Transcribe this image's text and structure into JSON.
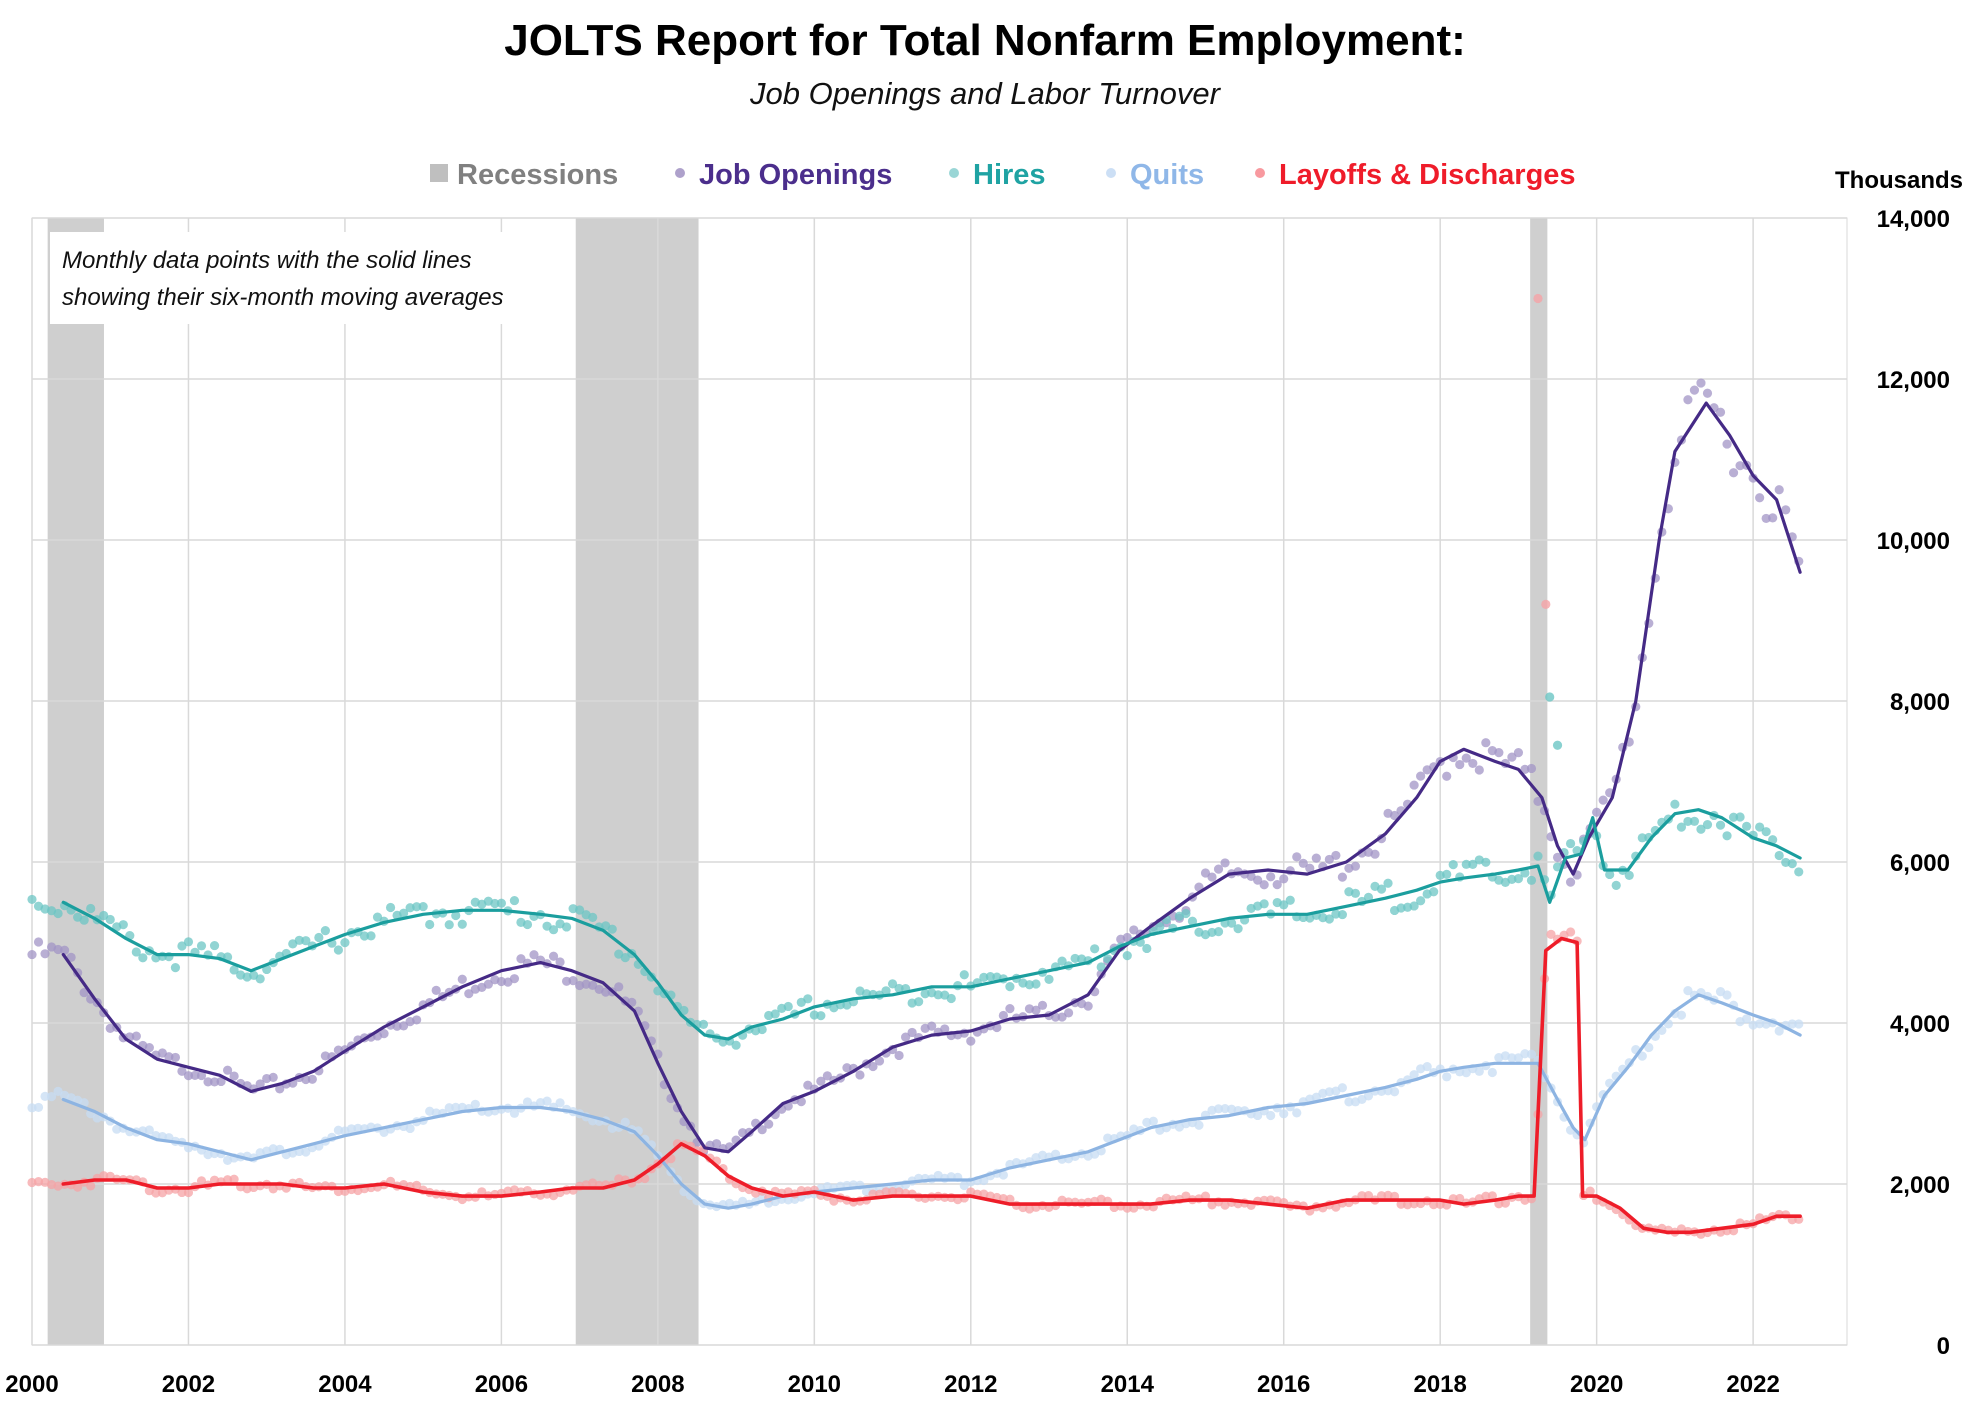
{
  "chart_data": {
    "type": "line",
    "title": "JOLTS Report for Total Nonfarm Employment:",
    "subtitle": "Job Openings and Labor Turnover",
    "units_label": "Thousands",
    "annotation": "Monthly data points with the solid lines showing their six-month moving averages",
    "annotation_lines": [
      "Monthly data points with the solid lines",
      "showing their six-month moving averages"
    ],
    "xlim": [
      2000,
      2023.2
    ],
    "ylim": [
      0,
      14000
    ],
    "x_ticks": [
      "2000",
      "2002",
      "2004",
      "2006",
      "2008",
      "2010",
      "2012",
      "2014",
      "2016",
      "2018",
      "2020",
      "2022"
    ],
    "y_ticks": [
      "0",
      "2,000",
      "4,000",
      "6,000",
      "8,000",
      "10,000",
      "12,000",
      "14,000"
    ],
    "y_tick_values": [
      0,
      2000,
      4000,
      6000,
      8000,
      10000,
      12000,
      14000
    ],
    "recessions": [
      [
        2000.2,
        2000.92
      ],
      [
        2006.95,
        2008.52
      ],
      [
        2019.15,
        2019.37
      ]
    ],
    "legend": [
      {
        "label": "Recessions",
        "color": "#bfbfbf",
        "marker": "square"
      },
      {
        "label": "Job Openings",
        "color": "#4b2e8c",
        "marker": "dot"
      },
      {
        "label": "Hires",
        "color": "#1fa3a3",
        "marker": "dot"
      },
      {
        "label": "Quits",
        "color": "#8fb7e8",
        "marker": "dot"
      },
      {
        "label": "Layoffs & Discharges",
        "color": "#ef1c2a",
        "marker": "dot"
      }
    ],
    "series": [
      {
        "name": "Job Openings",
        "color": "#4b2e8c",
        "line_color": "#452a86",
        "dot_color": "#a294c6",
        "ma_points": [
          [
            2000.4,
            4850
          ],
          [
            2000.8,
            4300
          ],
          [
            2001.2,
            3800
          ],
          [
            2001.6,
            3550
          ],
          [
            2002.0,
            3450
          ],
          [
            2002.4,
            3350
          ],
          [
            2002.8,
            3150
          ],
          [
            2003.2,
            3250
          ],
          [
            2003.6,
            3400
          ],
          [
            2004.0,
            3650
          ],
          [
            2004.5,
            3950
          ],
          [
            2005.0,
            4200
          ],
          [
            2005.5,
            4450
          ],
          [
            2006.0,
            4650
          ],
          [
            2006.5,
            4750
          ],
          [
            2006.9,
            4650
          ],
          [
            2007.3,
            4500
          ],
          [
            2007.7,
            4150
          ],
          [
            2008.0,
            3500
          ],
          [
            2008.3,
            2900
          ],
          [
            2008.6,
            2450
          ],
          [
            2008.9,
            2400
          ],
          [
            2009.2,
            2650
          ],
          [
            2009.6,
            3000
          ],
          [
            2010.0,
            3150
          ],
          [
            2010.5,
            3400
          ],
          [
            2011.0,
            3700
          ],
          [
            2011.5,
            3850
          ],
          [
            2012.0,
            3900
          ],
          [
            2012.5,
            4050
          ],
          [
            2013.0,
            4100
          ],
          [
            2013.5,
            4350
          ],
          [
            2013.9,
            4900
          ],
          [
            2014.3,
            5200
          ],
          [
            2014.8,
            5550
          ],
          [
            2015.3,
            5850
          ],
          [
            2015.8,
            5900
          ],
          [
            2016.3,
            5850
          ],
          [
            2016.8,
            6000
          ],
          [
            2017.3,
            6350
          ],
          [
            2017.7,
            6800
          ],
          [
            2018.0,
            7250
          ],
          [
            2018.3,
            7400
          ],
          [
            2018.7,
            7250
          ],
          [
            2019.0,
            7150
          ],
          [
            2019.3,
            6800
          ],
          [
            2019.5,
            6200
          ],
          [
            2019.7,
            5850
          ],
          [
            2019.9,
            6300
          ],
          [
            2020.2,
            6800
          ],
          [
            2020.5,
            8000
          ],
          [
            2020.8,
            10000
          ],
          [
            2021.0,
            11100
          ],
          [
            2021.4,
            11700
          ],
          [
            2021.7,
            11300
          ],
          [
            2022.0,
            10800
          ],
          [
            2022.3,
            10500
          ],
          [
            2022.6,
            9600
          ]
        ]
      },
      {
        "name": "Hires",
        "color": "#1fa3a3",
        "line_color": "#1b9e9e",
        "dot_color": "#6cc6c4",
        "ma_points": [
          [
            2000.4,
            5500
          ],
          [
            2000.8,
            5300
          ],
          [
            2001.2,
            5050
          ],
          [
            2001.6,
            4850
          ],
          [
            2002.0,
            4850
          ],
          [
            2002.4,
            4800
          ],
          [
            2002.8,
            4650
          ],
          [
            2003.2,
            4800
          ],
          [
            2003.6,
            4950
          ],
          [
            2004.0,
            5100
          ],
          [
            2004.5,
            5250
          ],
          [
            2005.0,
            5350
          ],
          [
            2005.5,
            5400
          ],
          [
            2006.0,
            5400
          ],
          [
            2006.5,
            5350
          ],
          [
            2006.9,
            5300
          ],
          [
            2007.3,
            5150
          ],
          [
            2007.7,
            4850
          ],
          [
            2008.0,
            4500
          ],
          [
            2008.3,
            4100
          ],
          [
            2008.6,
            3850
          ],
          [
            2008.9,
            3800
          ],
          [
            2009.2,
            3950
          ],
          [
            2009.6,
            4050
          ],
          [
            2010.0,
            4200
          ],
          [
            2010.5,
            4300
          ],
          [
            2011.0,
            4350
          ],
          [
            2011.5,
            4450
          ],
          [
            2012.0,
            4450
          ],
          [
            2012.5,
            4550
          ],
          [
            2013.0,
            4650
          ],
          [
            2013.5,
            4750
          ],
          [
            2013.9,
            4950
          ],
          [
            2014.3,
            5100
          ],
          [
            2014.8,
            5200
          ],
          [
            2015.3,
            5300
          ],
          [
            2015.8,
            5350
          ],
          [
            2016.3,
            5350
          ],
          [
            2016.8,
            5450
          ],
          [
            2017.3,
            5550
          ],
          [
            2017.7,
            5650
          ],
          [
            2018.0,
            5750
          ],
          [
            2018.3,
            5800
          ],
          [
            2018.7,
            5850
          ],
          [
            2019.0,
            5900
          ],
          [
            2019.25,
            5950
          ],
          [
            2019.4,
            5500
          ],
          [
            2019.6,
            6050
          ],
          [
            2019.8,
            6100
          ],
          [
            2019.95,
            6550
          ],
          [
            2020.1,
            5900
          ],
          [
            2020.4,
            5900
          ],
          [
            2020.7,
            6300
          ],
          [
            2021.0,
            6600
          ],
          [
            2021.3,
            6650
          ],
          [
            2021.6,
            6550
          ],
          [
            2022.0,
            6300
          ],
          [
            2022.3,
            6200
          ],
          [
            2022.6,
            6050
          ]
        ]
      },
      {
        "name": "Quits",
        "color": "#8fb7e8",
        "line_color": "#8db4e2",
        "dot_color": "#c7dcf3",
        "ma_points": [
          [
            2000.4,
            3050
          ],
          [
            2000.8,
            2900
          ],
          [
            2001.2,
            2700
          ],
          [
            2001.6,
            2550
          ],
          [
            2002.0,
            2500
          ],
          [
            2002.4,
            2400
          ],
          [
            2002.8,
            2300
          ],
          [
            2003.2,
            2400
          ],
          [
            2003.6,
            2500
          ],
          [
            2004.0,
            2600
          ],
          [
            2004.5,
            2700
          ],
          [
            2005.0,
            2800
          ],
          [
            2005.5,
            2900
          ],
          [
            2006.0,
            2950
          ],
          [
            2006.5,
            2950
          ],
          [
            2006.9,
            2900
          ],
          [
            2007.3,
            2800
          ],
          [
            2007.7,
            2650
          ],
          [
            2008.0,
            2350
          ],
          [
            2008.3,
            2000
          ],
          [
            2008.6,
            1750
          ],
          [
            2008.9,
            1700
          ],
          [
            2009.2,
            1750
          ],
          [
            2009.6,
            1850
          ],
          [
            2010.0,
            1900
          ],
          [
            2010.5,
            1950
          ],
          [
            2011.0,
            2000
          ],
          [
            2011.5,
            2050
          ],
          [
            2012.0,
            2050
          ],
          [
            2012.5,
            2200
          ],
          [
            2013.0,
            2300
          ],
          [
            2013.5,
            2400
          ],
          [
            2013.9,
            2550
          ],
          [
            2014.3,
            2700
          ],
          [
            2014.8,
            2800
          ],
          [
            2015.3,
            2850
          ],
          [
            2015.8,
            2950
          ],
          [
            2016.3,
            3000
          ],
          [
            2016.8,
            3100
          ],
          [
            2017.3,
            3200
          ],
          [
            2017.7,
            3300
          ],
          [
            2018.0,
            3400
          ],
          [
            2018.3,
            3450
          ],
          [
            2018.7,
            3500
          ],
          [
            2019.0,
            3500
          ],
          [
            2019.25,
            3500
          ],
          [
            2019.5,
            3050
          ],
          [
            2019.7,
            2700
          ],
          [
            2019.85,
            2550
          ],
          [
            2020.1,
            3100
          ],
          [
            2020.4,
            3450
          ],
          [
            2020.7,
            3850
          ],
          [
            2021.0,
            4150
          ],
          [
            2021.3,
            4350
          ],
          [
            2021.6,
            4250
          ],
          [
            2022.0,
            4100
          ],
          [
            2022.3,
            4000
          ],
          [
            2022.6,
            3850
          ]
        ]
      },
      {
        "name": "Layoffs & Discharges",
        "color": "#ef1c2a",
        "line_color": "#ee1d29",
        "dot_color": "#f5a3a6",
        "ma_points": [
          [
            2000.4,
            2000
          ],
          [
            2000.8,
            2050
          ],
          [
            2001.2,
            2050
          ],
          [
            2001.6,
            1950
          ],
          [
            2002.0,
            1950
          ],
          [
            2002.4,
            2000
          ],
          [
            2002.8,
            2000
          ],
          [
            2003.2,
            2000
          ],
          [
            2003.6,
            1950
          ],
          [
            2004.0,
            1950
          ],
          [
            2004.5,
            2000
          ],
          [
            2005.0,
            1900
          ],
          [
            2005.5,
            1850
          ],
          [
            2006.0,
            1850
          ],
          [
            2006.5,
            1900
          ],
          [
            2006.9,
            1950
          ],
          [
            2007.3,
            1950
          ],
          [
            2007.7,
            2050
          ],
          [
            2008.0,
            2250
          ],
          [
            2008.3,
            2500
          ],
          [
            2008.6,
            2350
          ],
          [
            2008.9,
            2100
          ],
          [
            2009.2,
            1950
          ],
          [
            2009.6,
            1850
          ],
          [
            2010.0,
            1900
          ],
          [
            2010.5,
            1800
          ],
          [
            2011.0,
            1850
          ],
          [
            2011.5,
            1850
          ],
          [
            2012.0,
            1850
          ],
          [
            2012.5,
            1750
          ],
          [
            2013.0,
            1750
          ],
          [
            2013.5,
            1750
          ],
          [
            2013.9,
            1750
          ],
          [
            2014.3,
            1750
          ],
          [
            2014.8,
            1800
          ],
          [
            2015.3,
            1800
          ],
          [
            2015.8,
            1750
          ],
          [
            2016.3,
            1700
          ],
          [
            2016.8,
            1800
          ],
          [
            2017.3,
            1800
          ],
          [
            2017.7,
            1800
          ],
          [
            2018.0,
            1800
          ],
          [
            2018.3,
            1750
          ],
          [
            2018.7,
            1800
          ],
          [
            2019.0,
            1850
          ],
          [
            2019.2,
            1850
          ],
          [
            2019.35,
            4900
          ],
          [
            2019.55,
            5050
          ],
          [
            2019.75,
            5000
          ],
          [
            2019.82,
            1850
          ],
          [
            2020.0,
            1850
          ],
          [
            2020.3,
            1700
          ],
          [
            2020.6,
            1450
          ],
          [
            2020.9,
            1400
          ],
          [
            2021.2,
            1400
          ],
          [
            2021.6,
            1450
          ],
          [
            2022.0,
            1500
          ],
          [
            2022.3,
            1600
          ],
          [
            2022.6,
            1600
          ]
        ]
      }
    ],
    "outliers": [
      {
        "series": "Layoffs & Discharges",
        "x": 2019.25,
        "y": 13000
      },
      {
        "series": "Layoffs & Discharges",
        "x": 2019.35,
        "y": 9200
      },
      {
        "series": "Hires",
        "x": 2019.4,
        "y": 8050
      },
      {
        "series": "Hires",
        "x": 2019.5,
        "y": 7450
      }
    ]
  }
}
